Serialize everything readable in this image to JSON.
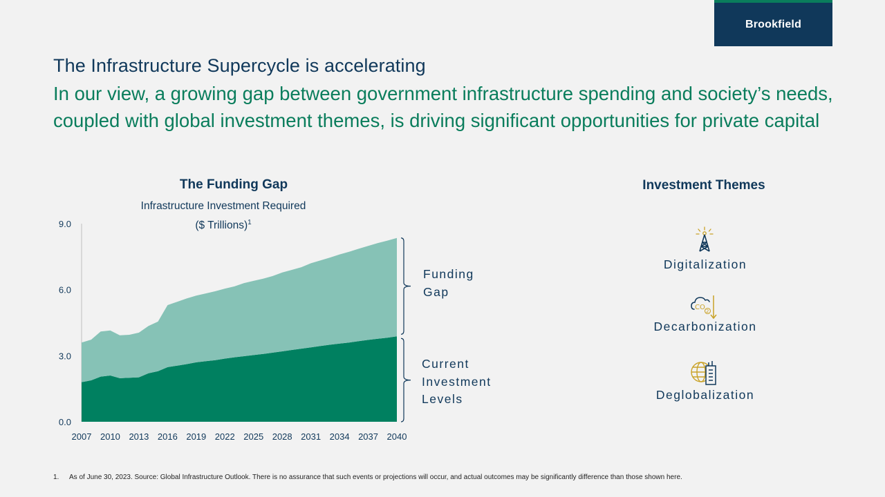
{
  "logo": {
    "text": "Brookfield"
  },
  "header": {
    "title": "The Infrastructure Supercycle is accelerating",
    "subtitle": "In our view, a growing gap between government infrastructure spending and society’s needs, coupled with global investment themes, is driving significant opportunities for private capital"
  },
  "chart": {
    "heading": "The Funding Gap",
    "subheading": "Infrastructure Investment Required",
    "units": "($ Trillions)",
    "footnote_marker": "1",
    "gap_label": [
      "Funding",
      "Gap"
    ],
    "current_label": [
      "Current",
      "Investment",
      "Levels"
    ]
  },
  "chart_data": {
    "type": "area",
    "title": "The Funding Gap",
    "subtitle": "Infrastructure Investment Required ($ Trillions)",
    "ylim": [
      0,
      9
    ],
    "yticks": [
      "0.0",
      "3.0",
      "6.0",
      "9.0"
    ],
    "xticks": [
      "2007",
      "2010",
      "2013",
      "2016",
      "2019",
      "2022",
      "2025",
      "2028",
      "2031",
      "2034",
      "2037",
      "2040"
    ],
    "x": [
      2007,
      2008,
      2009,
      2010,
      2011,
      2012,
      2013,
      2014,
      2015,
      2016,
      2017,
      2018,
      2019,
      2020,
      2021,
      2022,
      2023,
      2024,
      2025,
      2026,
      2027,
      2028,
      2029,
      2030,
      2031,
      2032,
      2033,
      2034,
      2035,
      2036,
      2037,
      2038,
      2039,
      2040
    ],
    "series": [
      {
        "name": "Current Investment Levels",
        "color": "#008060",
        "values": [
          1.8,
          1.88,
          2.05,
          2.1,
          1.98,
          2.0,
          2.02,
          2.2,
          2.3,
          2.48,
          2.55,
          2.62,
          2.7,
          2.75,
          2.8,
          2.87,
          2.93,
          2.98,
          3.03,
          3.08,
          3.14,
          3.2,
          3.26,
          3.32,
          3.38,
          3.44,
          3.5,
          3.55,
          3.6,
          3.66,
          3.72,
          3.77,
          3.82,
          3.88
        ]
      },
      {
        "name": "Funding Gap",
        "color": "#86c2b6",
        "values": [
          1.8,
          1.85,
          2.05,
          2.05,
          1.95,
          1.95,
          2.03,
          2.15,
          2.25,
          2.82,
          2.9,
          2.98,
          3.03,
          3.08,
          3.13,
          3.18,
          3.22,
          3.32,
          3.37,
          3.42,
          3.48,
          3.58,
          3.64,
          3.7,
          3.82,
          3.89,
          3.96,
          4.05,
          4.12,
          4.2,
          4.27,
          4.35,
          4.41,
          4.47
        ]
      }
    ],
    "stacked": true
  },
  "themes": {
    "title": "Investment Themes",
    "items": [
      {
        "label": "Digitalization",
        "icon": "cell-tower-icon"
      },
      {
        "label": "Decarbonization",
        "icon": "co2-reduction-icon"
      },
      {
        "label": "Deglobalization",
        "icon": "globe-building-icon"
      }
    ]
  },
  "footnote": {
    "number": "1.",
    "text": "As of June 30, 2023. Source: Global Infrastructure Outlook. There is no assurance that such events or projections will occur, and actual outcomes may be significantly difference than those shown here."
  },
  "colors": {
    "navy": "#10385a",
    "green": "#0a7d5c",
    "current": "#008060",
    "gap": "#86c2b6",
    "gold": "#c9a227"
  }
}
